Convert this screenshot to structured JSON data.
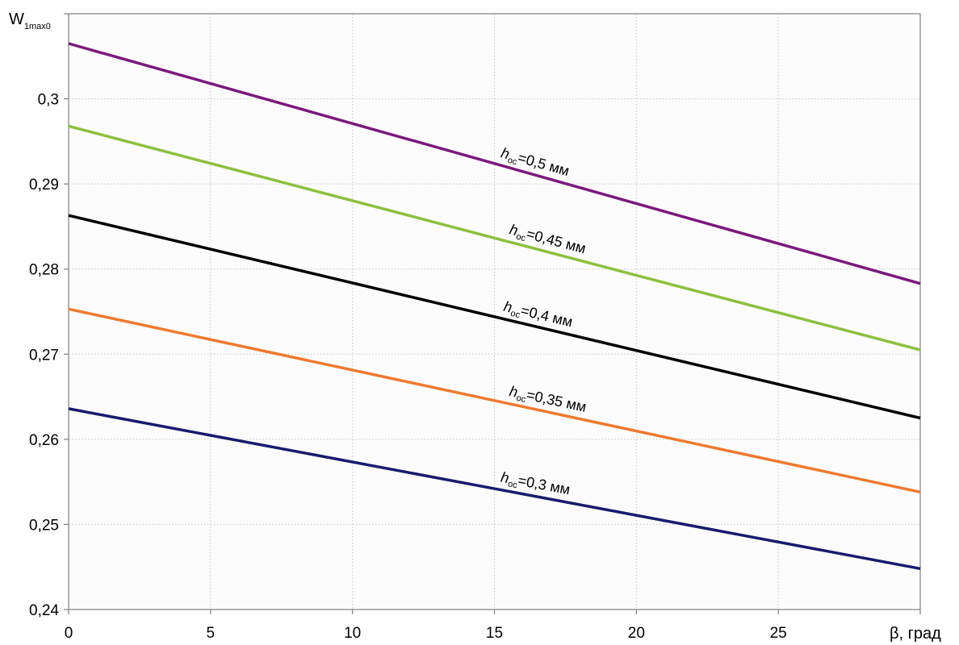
{
  "chart_data": {
    "type": "line",
    "title": "",
    "ylabel": "W",
    "ylabel_sub": "1max0",
    "xlabel": "β, град",
    "xlim": [
      0,
      30
    ],
    "ylim": [
      0.24,
      0.31
    ],
    "xticks": [
      0,
      5,
      10,
      15,
      20,
      25
    ],
    "xtick_labels": [
      "0",
      "5",
      "10",
      "15",
      "20",
      "25"
    ],
    "yticks": [
      0.24,
      0.25,
      0.26,
      0.27,
      0.28,
      0.29,
      0.3
    ],
    "ytick_labels": [
      "0,24",
      "0,25",
      "0,26",
      "0,27",
      "0,28",
      "0,29",
      "0,3"
    ],
    "grid": true,
    "series": [
      {
        "name": "h",
        "name_sub": "ос",
        "name_tail": "=0,5  мм",
        "color": "#7b1a7b",
        "x": [
          0,
          30
        ],
        "y": [
          0.3065,
          0.2783
        ],
        "label_at_x": 15.2
      },
      {
        "name": "h",
        "name_sub": "ос",
        "name_tail": "=0,45 мм",
        "color": "#8dc03f",
        "x": [
          0,
          30
        ],
        "y": [
          0.2968,
          0.2705
        ],
        "label_at_x": 15.5
      },
      {
        "name": "h",
        "name_sub": "ос",
        "name_tail": "=0,4 мм",
        "color": "#000000",
        "x": [
          0,
          30
        ],
        "y": [
          0.2863,
          0.2625
        ],
        "label_at_x": 15.3
      },
      {
        "name": "h",
        "name_sub": "ос",
        "name_tail": "=0,35 мм",
        "color": "#ee7a30",
        "x": [
          0,
          30
        ],
        "y": [
          0.2753,
          0.2538
        ],
        "label_at_x": 15.5
      },
      {
        "name": "h",
        "name_sub": "ос",
        "name_tail": "=0,3 мм",
        "color": "#1a1a6e",
        "x": [
          0,
          30
        ],
        "y": [
          0.2636,
          0.2448
        ],
        "label_at_x": 15.2
      }
    ]
  }
}
